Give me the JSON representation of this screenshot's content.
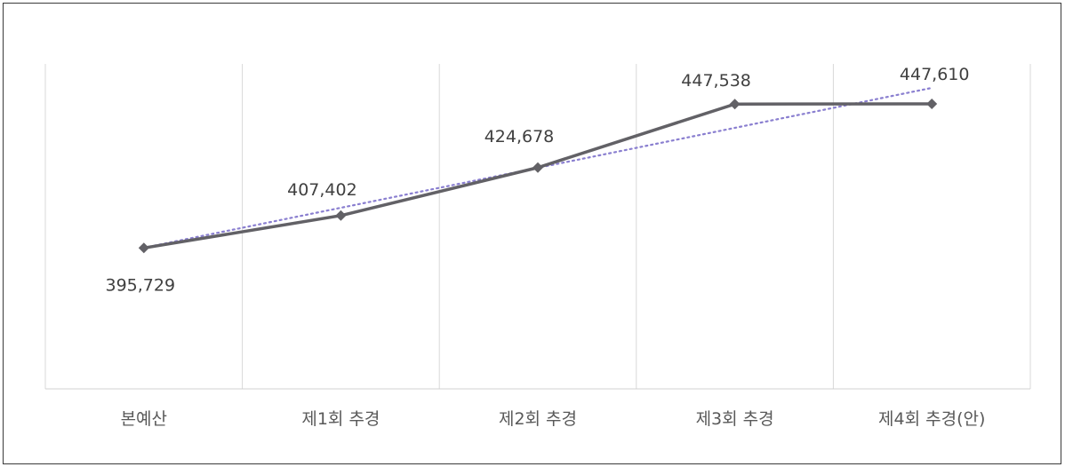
{
  "chart_data": {
    "type": "line",
    "categories": [
      "본예산",
      "제1회 추경",
      "제2회 추경",
      "제3회 추경",
      "제4회 추경(안)"
    ],
    "series": [
      {
        "values": [
          395729,
          407402,
          424678,
          447538,
          447610
        ]
      }
    ],
    "data_labels": [
      "395,729",
      "407,402",
      "424,678",
      "447,538",
      "447,610"
    ],
    "trendline": "linear",
    "ylim": [
      345000,
      462000
    ],
    "grid": "vertical category separators",
    "legend": "none",
    "colors": {
      "line": "#626166",
      "marker": "#626166",
      "trend": "#8a7fd0",
      "grid": "#d9d9d9",
      "axis": "#d0d0d0"
    }
  }
}
